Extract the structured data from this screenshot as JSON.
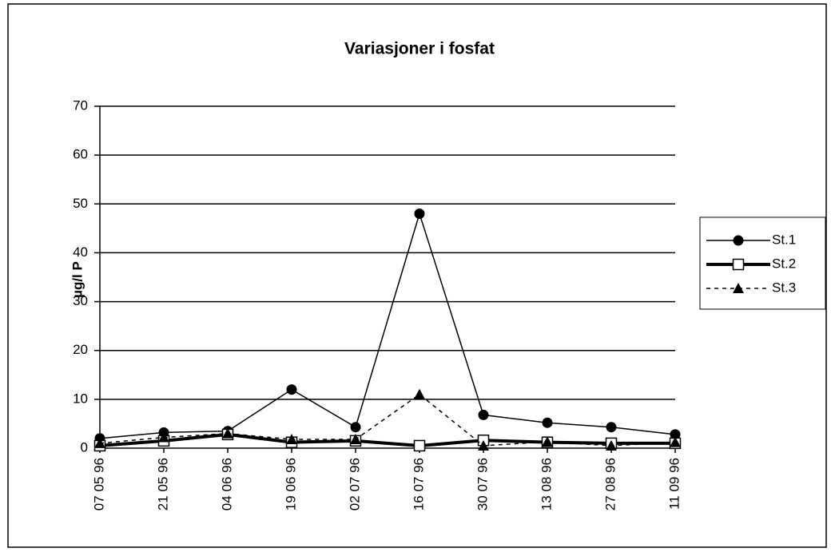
{
  "chart_data": {
    "type": "line",
    "title": "Variasjoner i fosfat",
    "y_label": "µg/l P",
    "categories": [
      "07 05 96",
      "21 05 96",
      "04 06 96",
      "19 06 96",
      "02 07 96",
      "16 07 96",
      "30 07 96",
      "13 08 96",
      "27 08 96",
      "11 09 96"
    ],
    "series": [
      {
        "name": "St.1",
        "color": "#000000",
        "marker": "circle",
        "line_width": 1.5,
        "dash": false,
        "values": [
          2,
          3.2,
          3.5,
          12,
          4.3,
          48,
          6.8,
          5.2,
          4.3,
          2.8
        ]
      },
      {
        "name": "St.2",
        "color": "#000000",
        "marker": "square",
        "line_width": 4,
        "dash": false,
        "values": [
          0.5,
          1.5,
          2.8,
          1.2,
          1.5,
          0.5,
          1.6,
          1.2,
          1.0,
          1.0
        ]
      },
      {
        "name": "St.3",
        "color": "#000000",
        "marker": "triangle",
        "line_width": 1.5,
        "dash": true,
        "values": [
          1,
          2.2,
          3,
          1.8,
          1.8,
          11,
          0.5,
          1.3,
          0.5,
          1.2
        ]
      }
    ],
    "ylim": [
      0,
      70
    ],
    "yticks": [
      0,
      10,
      20,
      30,
      40,
      50,
      60,
      70
    ],
    "grid": true,
    "legend": "right"
  }
}
